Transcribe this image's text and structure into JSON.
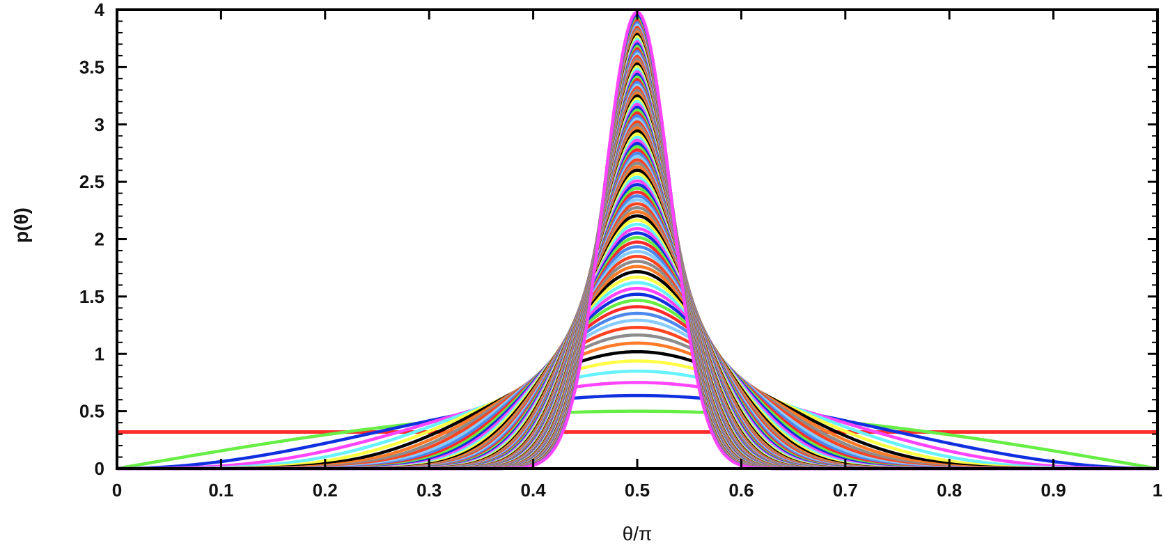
{
  "chart_data": {
    "type": "line",
    "xlabel": "θ/π",
    "ylabel": "p(θ)",
    "xlim": [
      0,
      1
    ],
    "ylim": [
      0,
      4
    ],
    "x_ticks": [
      "0",
      "0.1",
      "0.2",
      "0.3",
      "0.4",
      "0.5",
      "0.6",
      "0.7",
      "0.8",
      "0.9",
      "1"
    ],
    "y_ticks": [
      "0",
      "0.5",
      "1",
      "1.5",
      "2",
      "2.5",
      "3",
      "3.5",
      "4"
    ],
    "grid": false,
    "legend": "none",
    "family": "p(θ) ∝ sin^n(θ), n = 0, 1, 2, …, 99 (normalized over θ ∈ [0, π])",
    "series_count": 100,
    "n_values": [
      0,
      99
    ],
    "sample_points": [
      {
        "n": 0,
        "peak": 0.318
      },
      {
        "n": 1,
        "peak": 0.5
      },
      {
        "n": 2,
        "peak": 0.637
      },
      {
        "n": 10,
        "peak": 1.23
      },
      {
        "n": 99,
        "peak": 3.96
      }
    ],
    "colors": [
      "#ff2b2b",
      "#66ee44",
      "#1030e0",
      "#ff44ff",
      "#66f2ff",
      "#ffff44",
      "#000000",
      "#ff7a28",
      "#8c8c8c",
      "#ff4422",
      "#88ccff",
      "#4a88ee"
    ]
  }
}
